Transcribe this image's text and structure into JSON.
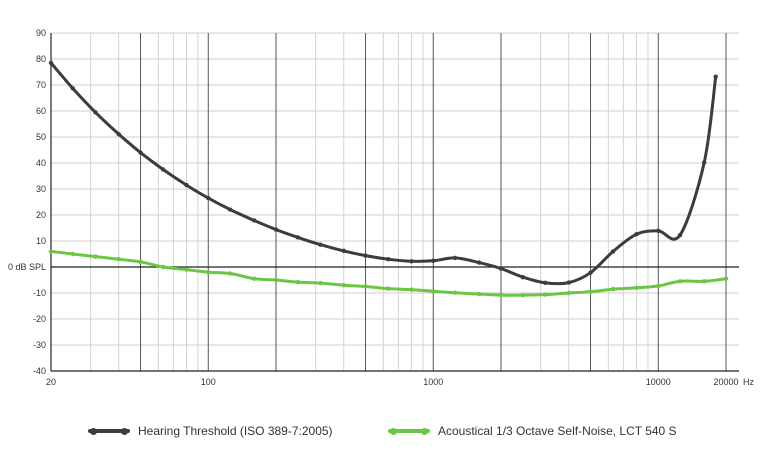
{
  "chart_data": {
    "type": "line",
    "xscale": "log",
    "xlim": [
      20,
      20000
    ],
    "ylim": [
      -40,
      90
    ],
    "x_ticks": [
      {
        "value": 20,
        "label": "20"
      },
      {
        "value": 100,
        "label": "100"
      },
      {
        "value": 1000,
        "label": "1000"
      },
      {
        "value": 10000,
        "label": "10000"
      },
      {
        "value": 20000,
        "label": "20000"
      }
    ],
    "x_unit": "Hz",
    "y_ticks": [
      {
        "value": 90,
        "label": "90"
      },
      {
        "value": 80,
        "label": "80"
      },
      {
        "value": 70,
        "label": "70"
      },
      {
        "value": 60,
        "label": "60"
      },
      {
        "value": 50,
        "label": "50"
      },
      {
        "value": 40,
        "label": "40"
      },
      {
        "value": 30,
        "label": "30"
      },
      {
        "value": 20,
        "label": "20"
      },
      {
        "value": 10,
        "label": "10"
      },
      {
        "value": 0,
        "label": "0 dB SPL"
      },
      {
        "value": -10,
        "label": "-10"
      },
      {
        "value": -20,
        "label": "-20"
      },
      {
        "value": -30,
        "label": "-30"
      },
      {
        "value": -40,
        "label": "-40"
      }
    ],
    "grid": true,
    "legend_position": "bottom",
    "series": [
      {
        "name": "Hearing Threshold (ISO 389-7:2005)",
        "color": "#3c3c3c",
        "x": [
          20,
          25,
          31.5,
          40,
          50,
          63,
          80,
          100,
          125,
          160,
          200,
          250,
          315,
          400,
          500,
          630,
          800,
          1000,
          1250,
          1600,
          2000,
          2500,
          3150,
          4000,
          5000,
          6300,
          8000,
          10000,
          12500,
          16000,
          18000
        ],
        "y": [
          78.5,
          68.7,
          59.5,
          51.1,
          44.0,
          37.5,
          31.5,
          26.5,
          22.1,
          17.9,
          14.4,
          11.4,
          8.6,
          6.2,
          4.4,
          3.0,
          2.2,
          2.4,
          3.5,
          1.7,
          -0.6,
          -3.9,
          -6.1,
          -6.0,
          -2.2,
          6.0,
          12.6,
          13.9,
          12.3,
          40.2,
          73.2
        ]
      },
      {
        "name": "Acoustical 1/3 Octave Self-Noise, LCT 540 S",
        "color": "#6cc644",
        "x": [
          20,
          25,
          31.5,
          40,
          50,
          63,
          80,
          100,
          125,
          160,
          200,
          250,
          315,
          400,
          500,
          630,
          800,
          1000,
          1250,
          1600,
          2000,
          2500,
          3150,
          4000,
          5000,
          6300,
          8000,
          10000,
          12500,
          16000,
          20000
        ],
        "y": [
          6.0,
          5.0,
          4.0,
          3.0,
          2.0,
          0.0,
          -1.0,
          -2.0,
          -2.5,
          -4.5,
          -5.0,
          -5.8,
          -6.2,
          -7.0,
          -7.5,
          -8.3,
          -8.7,
          -9.3,
          -9.9,
          -10.4,
          -10.8,
          -10.8,
          -10.6,
          -10.0,
          -9.5,
          -8.5,
          -8.0,
          -7.3,
          -5.5,
          -5.5,
          -4.5
        ]
      }
    ]
  }
}
